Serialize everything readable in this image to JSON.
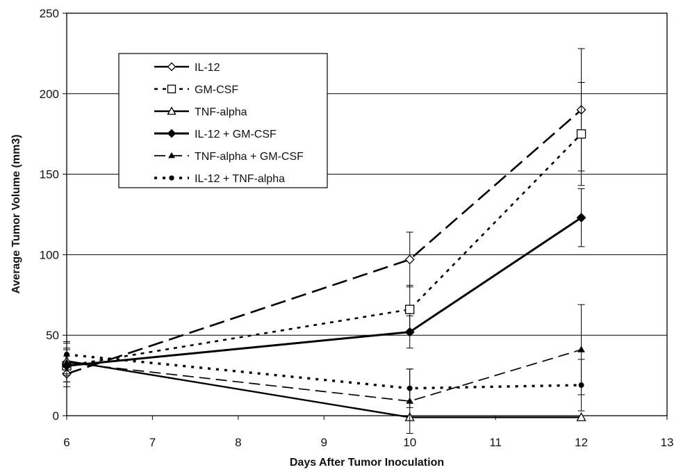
{
  "chart_data": {
    "type": "line",
    "title": "",
    "xlabel": "Days After Tumor Inoculation",
    "ylabel": "Average Tumor Volume (mm3)",
    "xlim": [
      6,
      13
    ],
    "ylim": [
      0,
      250
    ],
    "xticks": [
      6,
      7,
      8,
      9,
      10,
      11,
      12,
      13
    ],
    "yticks": [
      0,
      50,
      100,
      150,
      200,
      250
    ],
    "grid": "horizontal",
    "legend_position": "top-left",
    "x": [
      6,
      10,
      12
    ],
    "series": [
      {
        "name": "IL-12",
        "values": [
          26,
          97,
          190
        ],
        "error": [
          8,
          17,
          38
        ],
        "line": "long-dash",
        "marker": "diamond-open"
      },
      {
        "name": "GM-CSF",
        "values": [
          31,
          66,
          175
        ],
        "error": [
          10,
          15,
          32
        ],
        "line": "dotted",
        "marker": "square-open"
      },
      {
        "name": "TNF-alpha",
        "values": [
          34,
          -1,
          -1
        ],
        "error": [
          8,
          0,
          0
        ],
        "line": "solid",
        "marker": "triangle-open"
      },
      {
        "name": "IL-12 + GM-CSF",
        "values": [
          31,
          52,
          123
        ],
        "error": [
          6,
          10,
          18
        ],
        "line": "solid-bold",
        "marker": "diamond-filled"
      },
      {
        "name": "TNF-alpha + GM-CSF",
        "values": [
          33,
          9,
          41
        ],
        "error": [
          12,
          20,
          28
        ],
        "line": "dash",
        "marker": "triangle-filled"
      },
      {
        "name": "IL-12 + TNF-alpha",
        "values": [
          38,
          17,
          19
        ],
        "error": [
          8,
          12,
          16
        ],
        "line": "dotted-bold",
        "marker": "circle-filled"
      }
    ]
  }
}
